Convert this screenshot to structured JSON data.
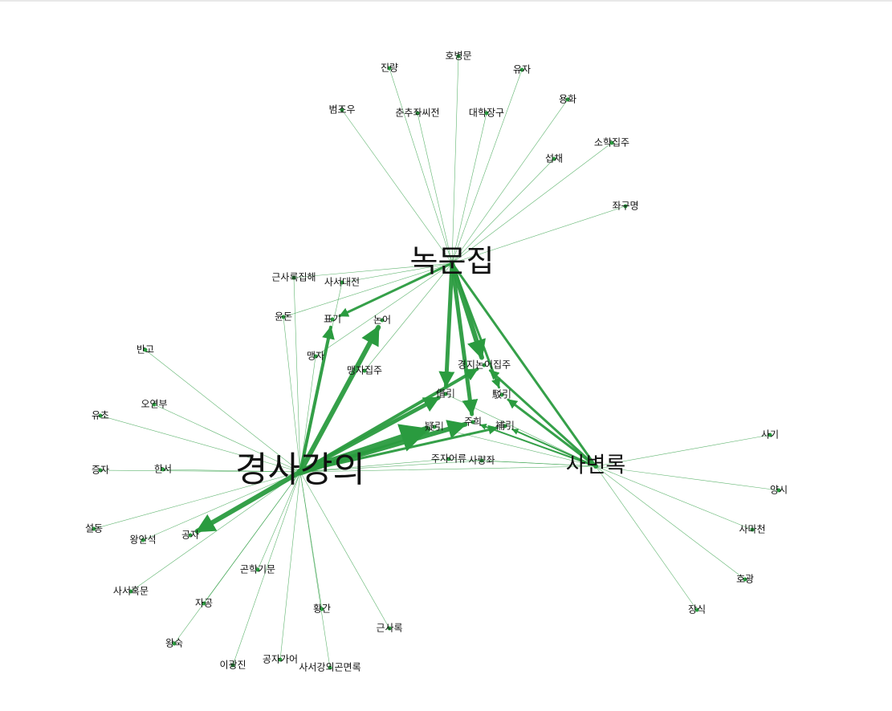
{
  "colors": {
    "edge": "#2a9b3f",
    "dot": "#2a9b3f",
    "text": "#111111"
  },
  "nodes": [
    {
      "id": "noksun",
      "label": "녹문집",
      "hub": true
    },
    {
      "id": "gyeongsa",
      "label": "경사강의",
      "hub": true
    },
    {
      "id": "sabyeon",
      "label": "사변록",
      "hub": true
    },
    {
      "id": "jinryang",
      "label": "진량"
    },
    {
      "id": "hobyeongmun",
      "label": "호병문"
    },
    {
      "id": "yuja",
      "label": "유자"
    },
    {
      "id": "beomjo",
      "label": "범조우"
    },
    {
      "id": "chunchu",
      "label": "춘추좌씨전"
    },
    {
      "id": "daehak",
      "label": "대학장구"
    },
    {
      "id": "yonghwa",
      "label": "용화"
    },
    {
      "id": "sohak",
      "label": "소학집주"
    },
    {
      "id": "seopje",
      "label": "섭채"
    },
    {
      "id": "jwagu",
      "label": "좌구명"
    },
    {
      "id": "geunsajiphae",
      "label": "근사록집해"
    },
    {
      "id": "sasedaejeon",
      "label": "사서대전"
    },
    {
      "id": "yundon",
      "label": "윤돈"
    },
    {
      "id": "pyogi",
      "label": "표기"
    },
    {
      "id": "noneo",
      "label": "논어"
    },
    {
      "id": "maengja",
      "label": "맹자"
    },
    {
      "id": "maengjajipju",
      "label": "맹자집주"
    },
    {
      "id": "gyeongjinoneo",
      "label": "경지논어집주"
    },
    {
      "id": "chagi",
      "label": "借引"
    },
    {
      "id": "yeokgi",
      "label": "駁引"
    },
    {
      "id": "uigi",
      "label": "疑引"
    },
    {
      "id": "juhui",
      "label": "주희"
    },
    {
      "id": "bogi",
      "label": "補引"
    },
    {
      "id": "juja",
      "label": "주자어류"
    },
    {
      "id": "sayangjwa",
      "label": "사량좌"
    },
    {
      "id": "bango",
      "label": "반고"
    },
    {
      "id": "ohyeonbu",
      "label": "오연부"
    },
    {
      "id": "yucho",
      "label": "유초"
    },
    {
      "id": "jeungja",
      "label": "증자"
    },
    {
      "id": "hanseo",
      "label": "한서"
    },
    {
      "id": "seoldong",
      "label": "설동"
    },
    {
      "id": "wanganseok",
      "label": "왕안석"
    },
    {
      "id": "gongja",
      "label": "공자"
    },
    {
      "id": "sasehongmun",
      "label": "사서혹문"
    },
    {
      "id": "gonhaegimun",
      "label": "곤학기문"
    },
    {
      "id": "jagong",
      "label": "자공"
    },
    {
      "id": "wangsuk",
      "label": "왕숙"
    },
    {
      "id": "leegwangjin",
      "label": "이광진"
    },
    {
      "id": "gongjagaeo",
      "label": "공자가어"
    },
    {
      "id": "sasegangui",
      "label": "사서강의곤면록"
    },
    {
      "id": "hwangkan",
      "label": "황간"
    },
    {
      "id": "geunsarok",
      "label": "근사록"
    },
    {
      "id": "sagi",
      "label": "사기"
    },
    {
      "id": "yangsi",
      "label": "양시"
    },
    {
      "id": "samacheon",
      "label": "사마천"
    },
    {
      "id": "hogwang",
      "label": "호광"
    },
    {
      "id": "jangsik",
      "label": "장식"
    }
  ]
}
